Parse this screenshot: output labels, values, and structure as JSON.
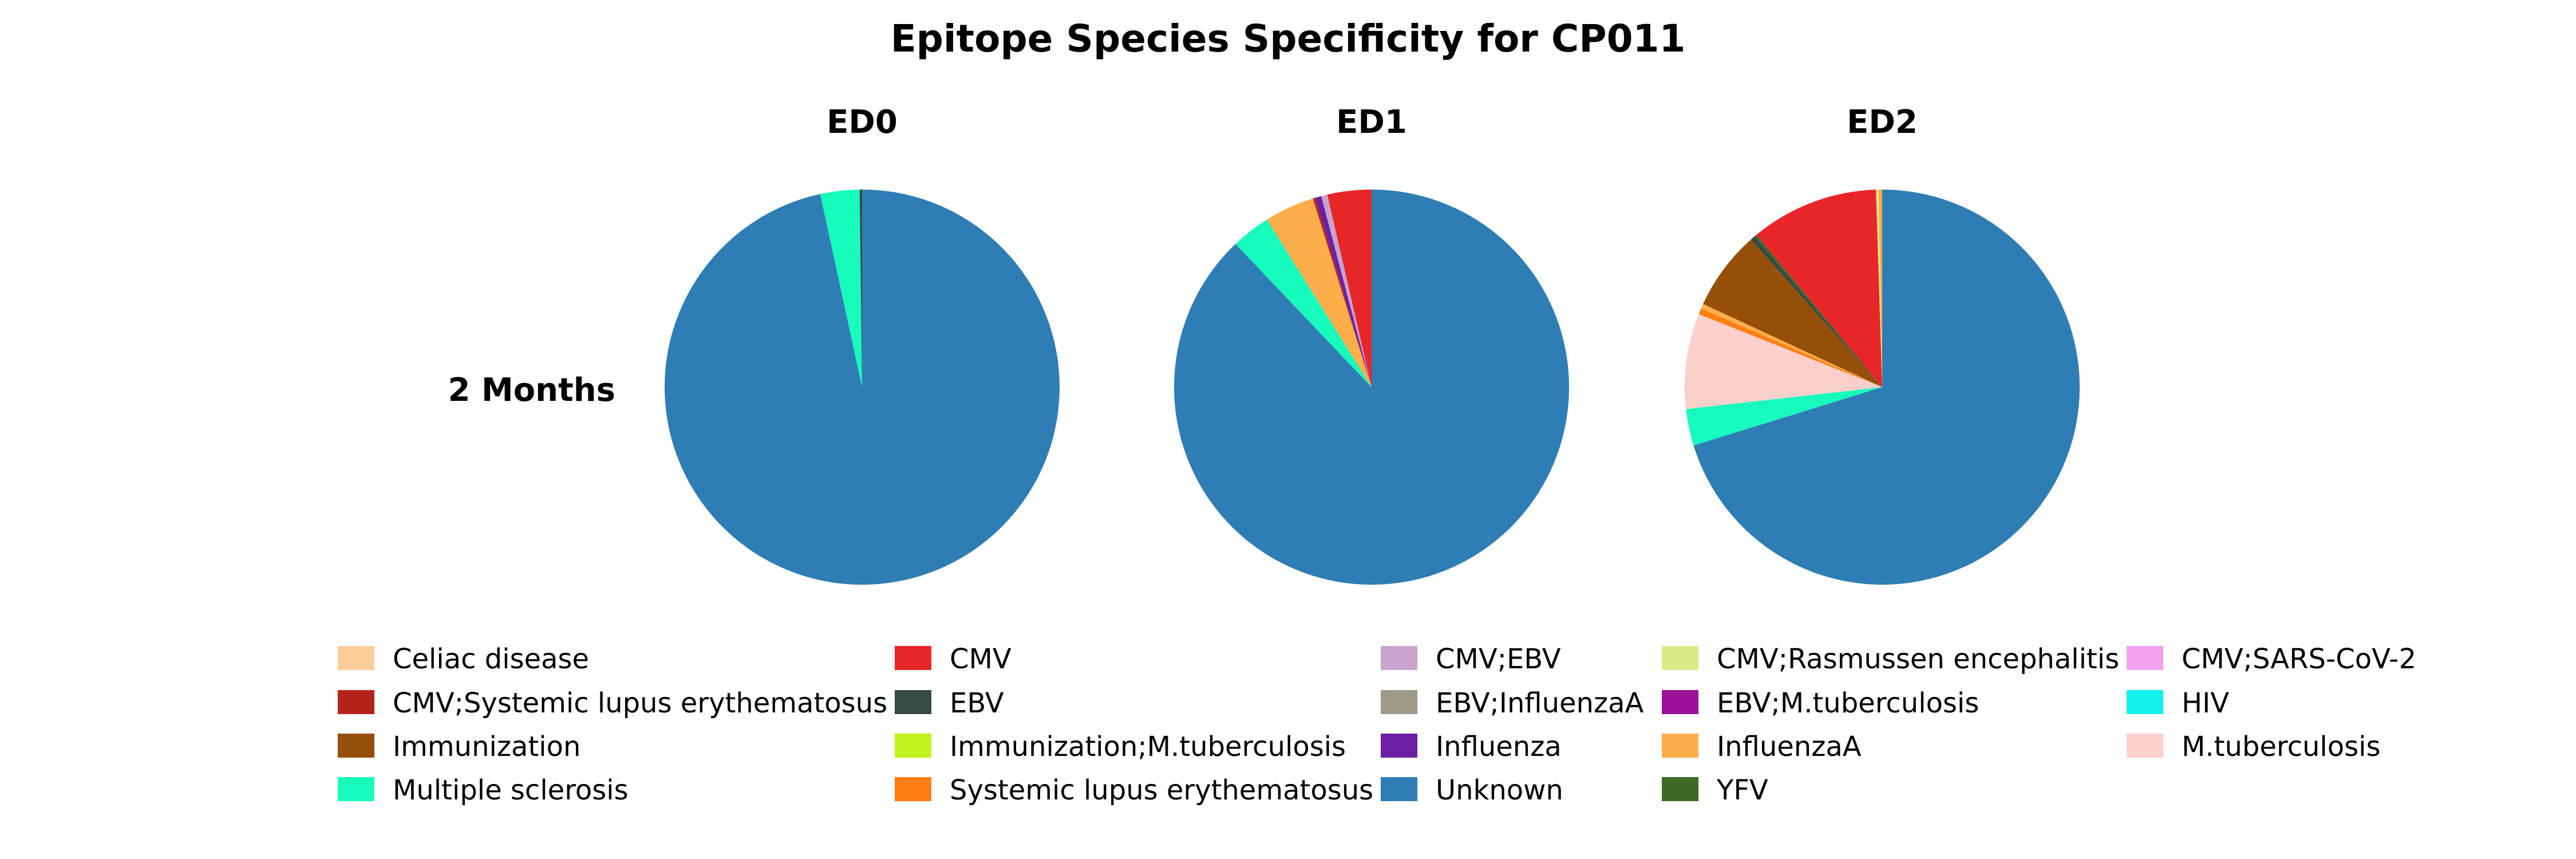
{
  "chart_data": {
    "type": "pie",
    "title": "Epitope Species Specificity for CP011",
    "row_label": "2 Months",
    "legend_placement": "bottom",
    "categories": [
      {
        "name": "Celiac disease",
        "color": "#fdcd98"
      },
      {
        "name": "CMV",
        "color": "#e8262a"
      },
      {
        "name": "CMV;EBV",
        "color": "#c8a3cb"
      },
      {
        "name": "CMV;Rasmussen encephalitis",
        "color": "#dbea84"
      },
      {
        "name": "CMV;SARS-CoV-2",
        "color": "#f2a0f0"
      },
      {
        "name": "CMV;Systemic lupus erythematosus",
        "color": "#b4231a"
      },
      {
        "name": "EBV",
        "color": "#364b42"
      },
      {
        "name": "EBV;InfluenzaA",
        "color": "#9e9a88"
      },
      {
        "name": "EBV;M.tuberculosis",
        "color": "#9b1198"
      },
      {
        "name": "HIV",
        "color": "#11f1ee"
      },
      {
        "name": "Immunization",
        "color": "#964f08"
      },
      {
        "name": "Immunization;M.tuberculosis",
        "color": "#c1f21d"
      },
      {
        "name": "Influenza",
        "color": "#6b20a7"
      },
      {
        "name": "InfluenzaA",
        "color": "#fdae4b"
      },
      {
        "name": "M.tuberculosis",
        "color": "#fbcfcb"
      },
      {
        "name": "Multiple sclerosis",
        "color": "#17fcbd"
      },
      {
        "name": "Systemic lupus erythematosus",
        "color": "#fd7f13"
      },
      {
        "name": "Unknown",
        "color": "#2e7db5"
      },
      {
        "name": "YFV",
        "color": "#3d6a23"
      }
    ],
    "pies": [
      {
        "title": "ED0",
        "slices": [
          {
            "label": "Unknown",
            "value": 96.6
          },
          {
            "label": "Multiple sclerosis",
            "value": 3.2
          },
          {
            "label": "EBV",
            "value": 0.2
          }
        ]
      },
      {
        "title": "ED1",
        "slices": [
          {
            "label": "Unknown",
            "value": 87.9
          },
          {
            "label": "Multiple sclerosis",
            "value": 3.2
          },
          {
            "label": "InfluenzaA",
            "value": 4.1
          },
          {
            "label": "CMV;Systemic lupus erythematosus",
            "value": 0.2
          },
          {
            "label": "Influenza",
            "value": 0.5
          },
          {
            "label": "CMV;EBV",
            "value": 0.5
          },
          {
            "label": "CMV",
            "value": 3.6
          }
        ]
      },
      {
        "title": "ED2",
        "slices": [
          {
            "label": "Unknown",
            "value": 70.3
          },
          {
            "label": "Multiple sclerosis",
            "value": 3.0
          },
          {
            "label": "M.tuberculosis",
            "value": 7.8
          },
          {
            "label": "Systemic lupus erythematosus",
            "value": 0.5
          },
          {
            "label": "InfluenzaA",
            "value": 0.4
          },
          {
            "label": "Immunization",
            "value": 6.5
          },
          {
            "label": "EBV",
            "value": 0.4
          },
          {
            "label": "YFV",
            "value": 0.2
          },
          {
            "label": "CMV",
            "value": 10.5
          },
          {
            "label": "CMV;Rasmussen encephalitis",
            "value": 0.2
          },
          {
            "label": "InfluenzaA",
            "value": 0.3
          }
        ]
      }
    ],
    "legend": [
      [
        "Celiac disease",
        "CMV",
        "CMV;EBV",
        "CMV;Rasmussen encephalitis",
        "CMV;SARS-CoV-2"
      ],
      [
        "CMV;Systemic lupus erythematosus",
        "EBV",
        "EBV;InfluenzaA",
        "EBV;M.tuberculosis",
        "HIV"
      ],
      [
        "Immunization",
        "Immunization;M.tuberculosis",
        "Influenza",
        "InfluenzaA",
        "M.tuberculosis"
      ],
      [
        "Multiple sclerosis",
        "Systemic lupus erythematosus",
        "Unknown",
        "YFV"
      ]
    ]
  }
}
